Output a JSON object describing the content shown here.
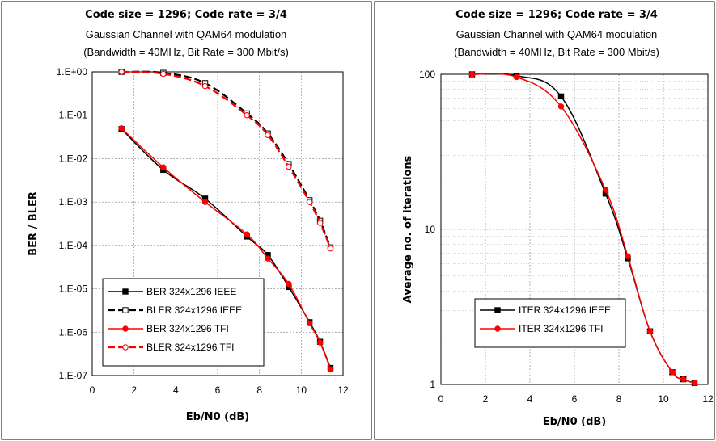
{
  "chart_data": [
    {
      "type": "line",
      "title": "Code size = 1296;  Code rate = 3/4",
      "subtitle": [
        "Gaussian Channel with QAM64 modulation",
        "(Bandwidth = 40MHz,  Bit Rate =  300 Mbit/s)"
      ],
      "xlabel": "Eb/N0 (dB)",
      "ylabel": "BER / BLER",
      "xlim": [
        0,
        12
      ],
      "xticks": [
        "0",
        "2",
        "4",
        "6",
        "8",
        "10",
        "12"
      ],
      "ylim": [
        1e-07,
        1
      ],
      "yscale": "log",
      "yticks": [
        "1.E-07",
        "1.E-06",
        "1.E-05",
        "1.E-04",
        "1.E-03",
        "1.E-02",
        "1.E-01",
        "1.E+00"
      ],
      "grid": true,
      "legend_position": "bottom-left",
      "series": [
        {
          "name": "BER 324x1296 IEEE",
          "color": "#000000",
          "dash": "solid",
          "marker": "square-filled",
          "x": [
            1.4,
            3.4,
            5.4,
            7.4,
            8.4,
            9.4,
            10.4,
            10.9,
            11.4
          ],
          "y": [
            0.048,
            0.0055,
            0.0012,
            0.00016,
            6e-05,
            1.1e-05,
            1.7e-06,
            6e-07,
            1.5e-07
          ]
        },
        {
          "name": "BLER 324x1296 IEEE",
          "color": "#000000",
          "dash": "dashed",
          "marker": "square-open",
          "x": [
            1.4,
            3.4,
            5.4,
            7.4,
            8.4,
            9.4,
            10.4,
            10.9,
            11.4
          ],
          "y": [
            1.0,
            0.95,
            0.55,
            0.11,
            0.038,
            0.0075,
            0.0011,
            0.00037,
            9e-05
          ]
        },
        {
          "name": "BER 324x1296 TFI",
          "color": "#ff0000",
          "dash": "solid",
          "marker": "circle-filled",
          "x": [
            1.4,
            3.4,
            5.4,
            7.4,
            8.4,
            9.4,
            10.4,
            10.9,
            11.4
          ],
          "y": [
            0.05,
            0.0063,
            0.001,
            0.00018,
            5e-05,
            1.3e-05,
            1.6e-06,
            5.8e-07,
            1.4e-07
          ]
        },
        {
          "name": "BLER 324x1296 TFI",
          "color": "#ff0000",
          "dash": "dashed",
          "marker": "circle-open",
          "x": [
            1.4,
            3.4,
            5.4,
            7.4,
            8.4,
            9.4,
            10.4,
            10.9,
            11.4
          ],
          "y": [
            1.0,
            0.9,
            0.47,
            0.1,
            0.035,
            0.0065,
            0.001,
            0.00033,
            8.5e-05
          ]
        }
      ]
    },
    {
      "type": "line",
      "title": "Code size = 1296;  Code rate = 3/4",
      "subtitle": [
        "Gaussian Channel with QAM64 modulation",
        "(Bandwidth = 40MHz,  Bit Rate =  300 Mbit/s)"
      ],
      "xlabel": "Eb/N0 (dB)",
      "ylabel": "Average no. of iterations",
      "xlim": [
        0,
        12
      ],
      "xticks": [
        "0",
        "2",
        "4",
        "6",
        "8",
        "10",
        "12"
      ],
      "ylim": [
        1,
        100
      ],
      "yscale": "log",
      "yticks": [
        "1",
        "10",
        "100"
      ],
      "grid": true,
      "legend_position": "bottom-left",
      "series": [
        {
          "name": "ITER 324x1296 IEEE",
          "color": "#000000",
          "dash": "solid",
          "marker": "square-filled",
          "x": [
            1.4,
            3.4,
            5.4,
            7.4,
            8.4,
            9.4,
            10.4,
            10.9,
            11.4
          ],
          "y": [
            100,
            98,
            72,
            17,
            6.5,
            2.2,
            1.2,
            1.08,
            1.02
          ]
        },
        {
          "name": "ITER 324x1296 TFI",
          "color": "#ff0000",
          "dash": "solid",
          "marker": "circle-filled",
          "x": [
            1.4,
            3.4,
            5.4,
            7.4,
            8.4,
            9.4,
            10.4,
            10.9,
            11.4
          ],
          "y": [
            100,
            96,
            62,
            18,
            6.7,
            2.2,
            1.2,
            1.08,
            1.02
          ]
        }
      ]
    }
  ]
}
